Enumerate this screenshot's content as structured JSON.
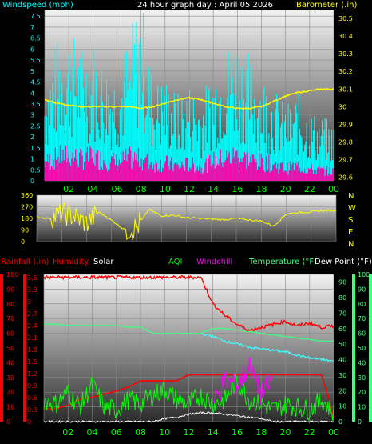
{
  "window": {
    "title": "24 hour graph day : April 05 2026"
  },
  "colors": {
    "wind": "#00ffff",
    "gust": "#ff00aa",
    "baro": "#ffff00",
    "dir": "#ffff00",
    "rain": "#ff0000",
    "hum": "#ff0000",
    "solar": "#ffffff",
    "aqi": "#00ff00",
    "chill": "#ff00ff",
    "temp": "#40ff80",
    "dew": "#40ffff",
    "xtick": "#00ff00",
    "plot_top": "#f0f0f0",
    "plot_bottom": "#303030",
    "grid": "#8a8a8a"
  },
  "x_ticks": [
    "02",
    "04",
    "06",
    "08",
    "10",
    "12",
    "14",
    "16",
    "18",
    "20",
    "22",
    "00"
  ],
  "chart_data": [
    {
      "type": "line",
      "title": "24 hour graph day : April 05 2026",
      "ylabel_left": "Windspeed (mph)",
      "ylabel_right": "Barometer (.in)",
      "left_ticks": [
        "0",
        "0.5",
        "1",
        "1.5",
        "2",
        "2.5",
        "3",
        "3.5",
        "4",
        "4.5",
        "5",
        "5.5",
        "6",
        "6.5",
        "7",
        "7.5"
      ],
      "right_ticks": [
        "29.6",
        "29.7",
        "29.8",
        "29.9",
        "30",
        "30.1",
        "30.2",
        "30.3",
        "30.4",
        "30.5"
      ],
      "ylim_left": [
        0,
        7.8
      ],
      "ylim_right": [
        29.58,
        30.55
      ],
      "x": [
        0,
        1,
        2,
        3,
        4,
        5,
        6,
        7,
        8,
        9,
        10,
        11,
        12,
        13,
        14,
        15,
        16,
        17,
        18,
        19,
        20,
        21,
        22,
        23,
        24
      ],
      "series": [
        {
          "name": "Windspeed (mph)",
          "axis": "left",
          "values": [
            1.8,
            2.2,
            2.5,
            2.1,
            2.3,
            2.0,
            1.8,
            2.2,
            2.1,
            1.6,
            1.7,
            1.4,
            1.6,
            1.3,
            1.9,
            2.2,
            2.4,
            2.0,
            1.8,
            1.6,
            1.2,
            1.4,
            1.1,
            1.0,
            0.9
          ]
        },
        {
          "name": "Gust (mph)",
          "axis": "left",
          "values": [
            3.5,
            4.8,
            5.2,
            4.6,
            4.9,
            4.1,
            3.8,
            5.0,
            6.4,
            3.4,
            3.6,
            3.0,
            3.4,
            2.9,
            3.9,
            4.6,
            5.1,
            4.3,
            3.7,
            3.2,
            2.6,
            3.0,
            2.4,
            2.2,
            2.0
          ]
        },
        {
          "name": "Barometer (.in)",
          "axis": "right",
          "values": [
            30.04,
            30.02,
            30.01,
            30.0,
            30.0,
            30.0,
            30.0,
            30.0,
            29.99,
            30.0,
            30.02,
            30.04,
            30.05,
            30.04,
            30.02,
            30.0,
            29.99,
            29.99,
            30.0,
            30.03,
            30.06,
            30.08,
            30.09,
            30.1,
            30.1
          ]
        }
      ]
    },
    {
      "type": "line",
      "ylabel_right": "N W S E N",
      "left_ticks": [
        "0",
        "90",
        "180",
        "270",
        "360"
      ],
      "ylim": [
        0,
        360
      ],
      "x": [
        0,
        1,
        2,
        3,
        4,
        5,
        6,
        7,
        8,
        9,
        10,
        11,
        12,
        13,
        14,
        15,
        16,
        17,
        18,
        19,
        20,
        21,
        22,
        23,
        24
      ],
      "series": [
        {
          "name": "Wind direction",
          "values": [
            190,
            180,
            215,
            200,
            140,
            230,
            165,
            95,
            105,
            250,
            200,
            205,
            185,
            180,
            175,
            170,
            180,
            168,
            160,
            120,
            215,
            225,
            232,
            240,
            242
          ]
        }
      ]
    },
    {
      "type": "line",
      "labels": [
        "Rainfall (.in)",
        "Humidity",
        "Solar",
        "AQI",
        "Windchill",
        "Temperature (°F)",
        "Dew Point (°F)"
      ],
      "left_ticks_hum": [
        "0",
        "10",
        "20",
        "30",
        "40",
        "50",
        "60",
        "70",
        "80",
        "90",
        "100"
      ],
      "left_ticks_rain": [
        "0",
        "0.3",
        "0.6",
        "0.9",
        "1.2",
        "1.5",
        "1.8",
        "2.1",
        "2.4",
        "2.7",
        "3",
        "3.3",
        "3.6"
      ],
      "right_ticks_temp": [
        "0",
        "10",
        "20",
        "30",
        "40",
        "50",
        "60",
        "70",
        "80",
        "90"
      ],
      "right_ticks_aqi": [
        "0",
        "10",
        "20",
        "30",
        "40",
        "50",
        "60",
        "70",
        "80",
        "90",
        "100"
      ],
      "ylim_hum": [
        0,
        100
      ],
      "ylim_temp": [
        0,
        95
      ],
      "x": [
        0,
        1,
        2,
        3,
        4,
        5,
        6,
        7,
        8,
        9,
        10,
        11,
        12,
        13,
        14,
        15,
        16,
        17,
        18,
        19,
        20,
        21,
        22,
        23,
        24
      ],
      "series": [
        {
          "name": "Humidity",
          "values": [
            98,
            98,
            98,
            98,
            98,
            98,
            98,
            98,
            98,
            98,
            98,
            98,
            98,
            98,
            80,
            72,
            66,
            62,
            64,
            66,
            68,
            65,
            67,
            64,
            65
          ]
        },
        {
          "name": "Temperature (°F)",
          "values": [
            63,
            63,
            62,
            62,
            62,
            62,
            62,
            61,
            61,
            57,
            57,
            57,
            57,
            57,
            60,
            60,
            59,
            58,
            57,
            56,
            55,
            54,
            53,
            52,
            52
          ]
        },
        {
          "name": "Dew Point (°F)",
          "values": [
            null,
            null,
            null,
            null,
            null,
            null,
            null,
            null,
            null,
            null,
            null,
            null,
            null,
            57,
            55,
            52,
            50,
            48,
            47,
            46,
            45,
            43,
            41,
            40,
            39
          ]
        },
        {
          "name": "Rainfall (.in)",
          "values": [
            0.32,
            0.32,
            0.4,
            0.55,
            0.6,
            0.68,
            0.75,
            0.85,
            1.0,
            1.0,
            1.0,
            1.0,
            1.15,
            1.15,
            1.15,
            1.15,
            1.15,
            1.15,
            1.15,
            1.15,
            1.15,
            1.15,
            1.15,
            1.15,
            0.1
          ]
        },
        {
          "name": "AQI",
          "values": [
            15,
            12,
            20,
            10,
            25,
            10,
            8,
            15,
            12,
            18,
            22,
            15,
            12,
            18,
            12,
            15,
            28,
            15,
            12,
            8,
            12,
            10,
            8,
            15,
            6
          ]
        },
        {
          "name": "Solar",
          "values": [
            0,
            0,
            0,
            0,
            0,
            0,
            0,
            0,
            0,
            0,
            2,
            3,
            5,
            6,
            6,
            5,
            4,
            3,
            2,
            0,
            0,
            0,
            0,
            0,
            0
          ]
        },
        {
          "name": "Windchill",
          "values": [
            null,
            null,
            null,
            null,
            null,
            null,
            null,
            null,
            null,
            null,
            null,
            null,
            null,
            null,
            12,
            28,
            24,
            38,
            18,
            30,
            null,
            null,
            null,
            null,
            null
          ]
        }
      ]
    }
  ]
}
